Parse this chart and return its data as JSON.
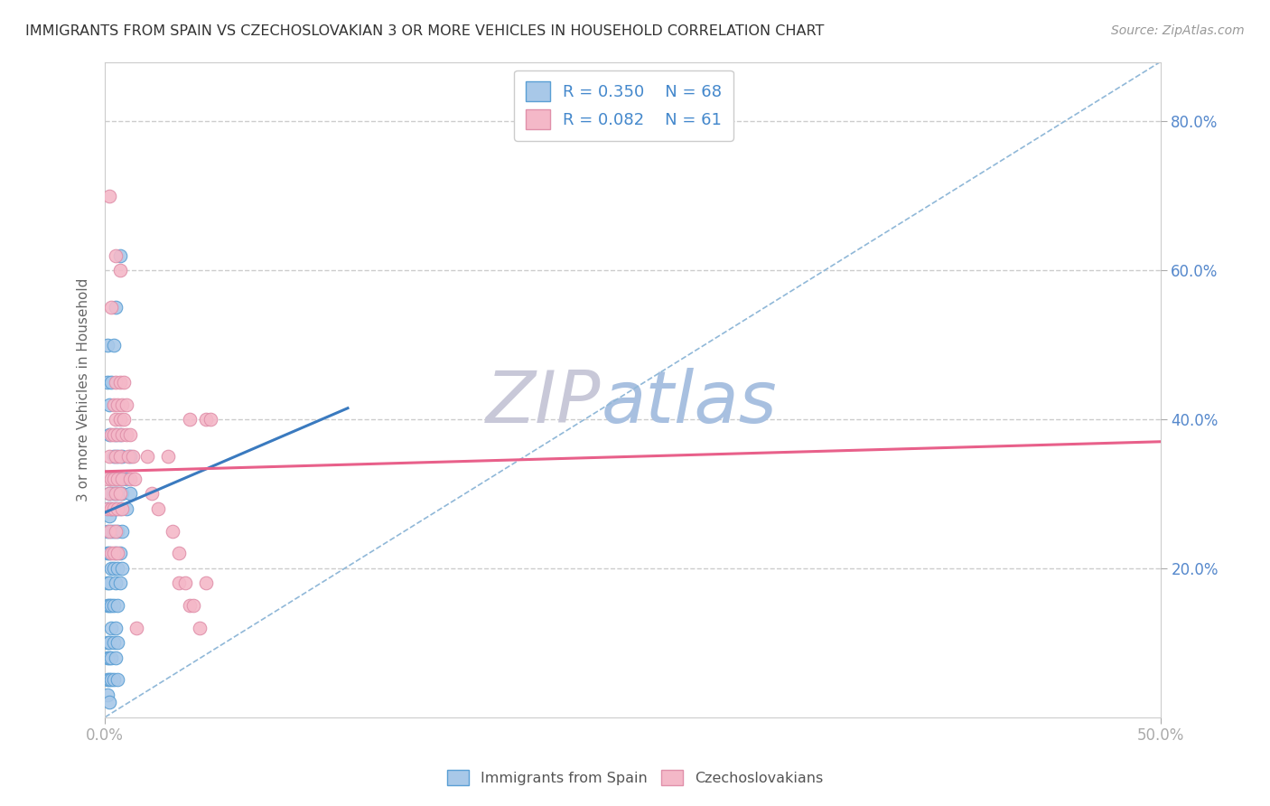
{
  "title": "IMMIGRANTS FROM SPAIN VS CZECHOSLOVAKIAN 3 OR MORE VEHICLES IN HOUSEHOLD CORRELATION CHART",
  "source": "Source: ZipAtlas.com",
  "ylabel_label": "3 or more Vehicles in Household",
  "legend_label1": "Immigrants from Spain",
  "legend_label2": "Czechoslovakians",
  "R1": 0.35,
  "N1": 68,
  "R2": 0.082,
  "N2": 61,
  "color_blue": "#a8c8e8",
  "color_pink": "#f4b8c8",
  "color_blue_line": "#3a7abf",
  "color_pink_line": "#e8608a",
  "color_blue_dark": "#5a9fd4",
  "color_pink_dark": "#e090aa",
  "watermark_zip": "#c8c8d8",
  "watermark_atlas": "#a8c0e0",
  "background_color": "#ffffff",
  "scatter_blue": [
    [
      0.001,
      0.28
    ],
    [
      0.001,
      0.25
    ],
    [
      0.001,
      0.22
    ],
    [
      0.001,
      0.18
    ],
    [
      0.001,
      0.15
    ],
    [
      0.001,
      0.1
    ],
    [
      0.001,
      0.08
    ],
    [
      0.001,
      0.05
    ],
    [
      0.001,
      0.03
    ],
    [
      0.001,
      0.45
    ],
    [
      0.001,
      0.5
    ],
    [
      0.002,
      0.3
    ],
    [
      0.002,
      0.27
    ],
    [
      0.002,
      0.22
    ],
    [
      0.002,
      0.18
    ],
    [
      0.002,
      0.15
    ],
    [
      0.002,
      0.1
    ],
    [
      0.002,
      0.08
    ],
    [
      0.002,
      0.05
    ],
    [
      0.002,
      0.38
    ],
    [
      0.002,
      0.42
    ],
    [
      0.003,
      0.32
    ],
    [
      0.003,
      0.28
    ],
    [
      0.003,
      0.25
    ],
    [
      0.003,
      0.2
    ],
    [
      0.003,
      0.15
    ],
    [
      0.003,
      0.12
    ],
    [
      0.003,
      0.08
    ],
    [
      0.003,
      0.05
    ],
    [
      0.003,
      0.45
    ],
    [
      0.004,
      0.35
    ],
    [
      0.004,
      0.3
    ],
    [
      0.004,
      0.25
    ],
    [
      0.004,
      0.2
    ],
    [
      0.004,
      0.15
    ],
    [
      0.004,
      0.1
    ],
    [
      0.004,
      0.05
    ],
    [
      0.004,
      0.5
    ],
    [
      0.005,
      0.38
    ],
    [
      0.005,
      0.32
    ],
    [
      0.005,
      0.28
    ],
    [
      0.005,
      0.22
    ],
    [
      0.005,
      0.18
    ],
    [
      0.005,
      0.12
    ],
    [
      0.005,
      0.08
    ],
    [
      0.005,
      0.55
    ],
    [
      0.006,
      0.35
    ],
    [
      0.006,
      0.3
    ],
    [
      0.006,
      0.25
    ],
    [
      0.006,
      0.2
    ],
    [
      0.006,
      0.15
    ],
    [
      0.006,
      0.1
    ],
    [
      0.006,
      0.05
    ],
    [
      0.007,
      0.38
    ],
    [
      0.007,
      0.32
    ],
    [
      0.007,
      0.28
    ],
    [
      0.007,
      0.22
    ],
    [
      0.007,
      0.18
    ],
    [
      0.007,
      0.62
    ],
    [
      0.008,
      0.35
    ],
    [
      0.008,
      0.3
    ],
    [
      0.008,
      0.25
    ],
    [
      0.008,
      0.2
    ],
    [
      0.01,
      0.32
    ],
    [
      0.01,
      0.28
    ],
    [
      0.012,
      0.35
    ],
    [
      0.012,
      0.3
    ],
    [
      0.002,
      0.02
    ]
  ],
  "scatter_pink": [
    [
      0.001,
      0.32
    ],
    [
      0.001,
      0.28
    ],
    [
      0.002,
      0.35
    ],
    [
      0.002,
      0.3
    ],
    [
      0.002,
      0.25
    ],
    [
      0.002,
      0.7
    ],
    [
      0.003,
      0.38
    ],
    [
      0.003,
      0.32
    ],
    [
      0.003,
      0.28
    ],
    [
      0.003,
      0.22
    ],
    [
      0.003,
      0.55
    ],
    [
      0.004,
      0.42
    ],
    [
      0.004,
      0.38
    ],
    [
      0.004,
      0.32
    ],
    [
      0.004,
      0.28
    ],
    [
      0.004,
      0.22
    ],
    [
      0.005,
      0.45
    ],
    [
      0.005,
      0.4
    ],
    [
      0.005,
      0.35
    ],
    [
      0.005,
      0.3
    ],
    [
      0.005,
      0.25
    ],
    [
      0.005,
      0.62
    ],
    [
      0.006,
      0.42
    ],
    [
      0.006,
      0.38
    ],
    [
      0.006,
      0.32
    ],
    [
      0.006,
      0.28
    ],
    [
      0.006,
      0.22
    ],
    [
      0.007,
      0.45
    ],
    [
      0.007,
      0.4
    ],
    [
      0.007,
      0.35
    ],
    [
      0.007,
      0.3
    ],
    [
      0.007,
      0.6
    ],
    [
      0.008,
      0.42
    ],
    [
      0.008,
      0.38
    ],
    [
      0.008,
      0.32
    ],
    [
      0.008,
      0.28
    ],
    [
      0.009,
      0.45
    ],
    [
      0.009,
      0.4
    ],
    [
      0.01,
      0.42
    ],
    [
      0.01,
      0.38
    ],
    [
      0.011,
      0.35
    ],
    [
      0.012,
      0.38
    ],
    [
      0.012,
      0.32
    ],
    [
      0.013,
      0.35
    ],
    [
      0.014,
      0.32
    ],
    [
      0.015,
      0.12
    ],
    [
      0.02,
      0.35
    ],
    [
      0.022,
      0.3
    ],
    [
      0.025,
      0.28
    ],
    [
      0.03,
      0.35
    ],
    [
      0.032,
      0.25
    ],
    [
      0.035,
      0.22
    ],
    [
      0.035,
      0.18
    ],
    [
      0.038,
      0.18
    ],
    [
      0.04,
      0.4
    ],
    [
      0.04,
      0.15
    ],
    [
      0.042,
      0.15
    ],
    [
      0.045,
      0.12
    ],
    [
      0.048,
      0.18
    ],
    [
      0.048,
      0.4
    ],
    [
      0.05,
      0.4
    ]
  ],
  "xlim": [
    0.0,
    0.5
  ],
  "ylim": [
    0.0,
    0.88
  ],
  "xtick_left": 0.0,
  "xtick_right": 0.5,
  "yticks": [
    0.2,
    0.4,
    0.6,
    0.8
  ],
  "ytick_labels": [
    "20.0%",
    "40.0%",
    "60.0%",
    "80.0%"
  ],
  "grid_yticks": [
    0.2,
    0.4,
    0.6,
    0.8
  ],
  "grid_color": "#cccccc",
  "blue_trend_x": [
    0.0,
    0.115
  ],
  "blue_trend_y": [
    0.275,
    0.415
  ],
  "pink_trend_x": [
    0.0,
    0.5
  ],
  "pink_trend_y": [
    0.33,
    0.37
  ]
}
